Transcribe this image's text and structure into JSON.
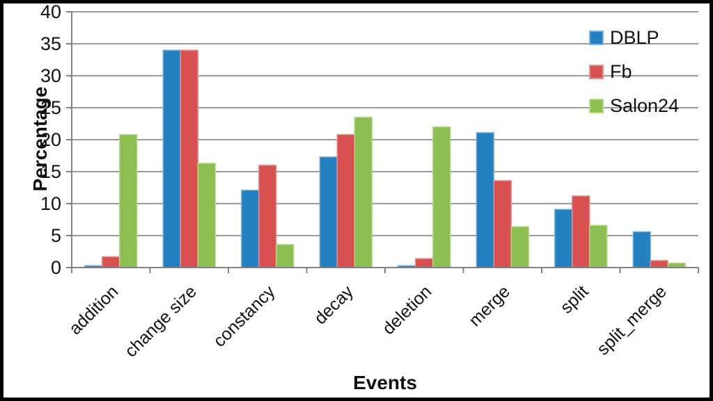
{
  "figure": {
    "background": "#FFFFFF",
    "frame_color": "#000000"
  },
  "chart_data": {
    "type": "bar",
    "title": "",
    "xlabel": "Events",
    "ylabel": "Percentage",
    "categories": [
      "addition",
      "change size",
      "constancy",
      "decay",
      "deletion",
      "merge",
      "split",
      "split_merge"
    ],
    "series": [
      {
        "name": "DBLP",
        "color": "#2381C2",
        "border_color": "#7FB0D8",
        "values": [
          0.3,
          34.0,
          12.1,
          17.3,
          0.3,
          21.1,
          9.1,
          5.6
        ]
      },
      {
        "name": "Fb",
        "color": "#D95050",
        "border_color": "#E8918F",
        "values": [
          1.7,
          34.0,
          16.0,
          20.8,
          1.4,
          13.6,
          11.2,
          1.1
        ]
      },
      {
        "name": "Salon24",
        "color": "#8CBE52",
        "border_color": "#B7D78C",
        "values": [
          20.8,
          16.3,
          3.6,
          23.5,
          22.0,
          6.4,
          6.6,
          0.7
        ]
      }
    ],
    "ylim": [
      0,
      40
    ],
    "yticks": [
      0,
      5,
      10,
      15,
      20,
      25,
      30,
      35,
      40
    ],
    "grid": true,
    "legend_position": "top-right",
    "gridline_color": "#9B9B9B",
    "axis_color": "#808080",
    "text_color": "#111111"
  }
}
